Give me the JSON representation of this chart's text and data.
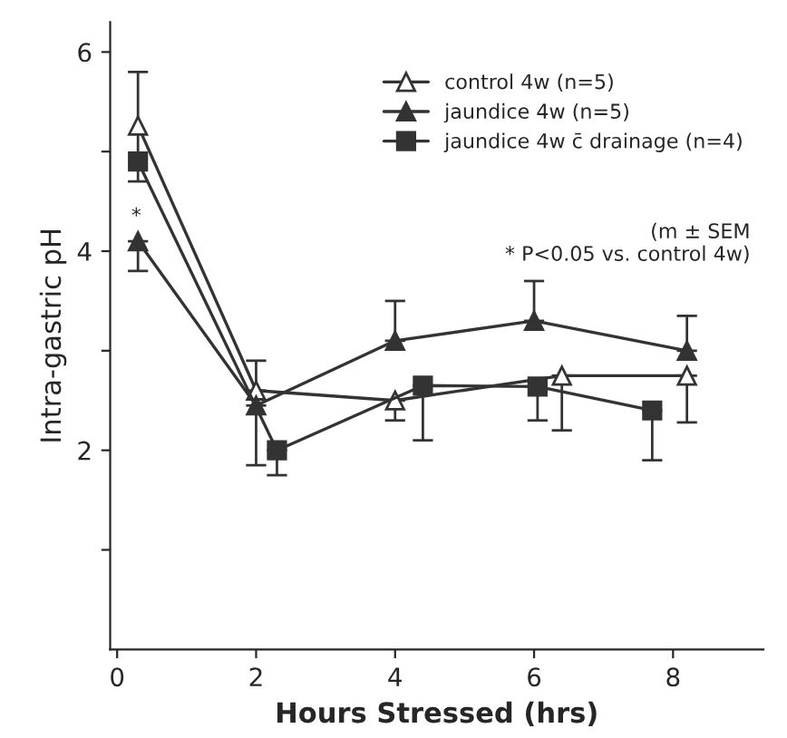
{
  "chart_data": {
    "type": "line",
    "xlabel": "Hours Stressed (hrs)",
    "ylabel": "Intra-gastric pH",
    "xlim": [
      -0.1,
      9.3
    ],
    "ylim": [
      0,
      6.3
    ],
    "xticks": [
      0,
      2,
      4,
      6,
      8
    ],
    "yticks": [
      {
        "value": 1,
        "label": null
      },
      2,
      {
        "value": 3,
        "label": null
      },
      4,
      {
        "value": 5,
        "label": null
      },
      6
    ],
    "grid": false,
    "legend": "top right",
    "series": [
      {
        "name": "control 4w (n=5)",
        "color": "#333333",
        "marker": "triangle",
        "x": [
          0.3,
          2,
          4,
          6.4,
          8.2
        ],
        "values": [
          5.26,
          2.6,
          2.5,
          2.75,
          2.75
        ],
        "errors": [
          [
            4.7,
            5.8
          ],
          [
            2.6,
            2.9
          ],
          [
            2.3,
            2.5
          ],
          [
            2.2,
            2.75
          ],
          [
            2.28,
            2.75
          ]
        ]
      },
      {
        "name": "jaundice 4w (n=5)",
        "color": "#333333",
        "marker": "triangle",
        "x": [
          0.3,
          2,
          4,
          6,
          8.2
        ],
        "values": [
          4.1,
          2.45,
          3.1,
          3.3,
          3.0
        ],
        "errors": [
          [
            3.8,
            4.1
          ],
          [
            1.85,
            2.45
          ],
          [
            3.1,
            3.5
          ],
          [
            3.3,
            3.7
          ],
          [
            3.0,
            3.35
          ]
        ]
      },
      {
        "name": "jaundice 4w c̄ drainage (n=4)",
        "color": "#333333",
        "marker": "square",
        "x": [
          0.3,
          2.3,
          4.4,
          6.05,
          7.7
        ],
        "values": [
          4.9,
          2.0,
          2.65,
          2.64,
          2.4
        ],
        "errors": [
          null,
          [
            1.75,
            2.0
          ],
          [
            2.1,
            2.65
          ],
          [
            2.3,
            2.64
          ],
          [
            1.9,
            2.4
          ]
        ]
      }
    ],
    "annotations": [
      "*",
      "(m ± SEM\n * P<0.05 vs. control 4w)"
    ]
  }
}
